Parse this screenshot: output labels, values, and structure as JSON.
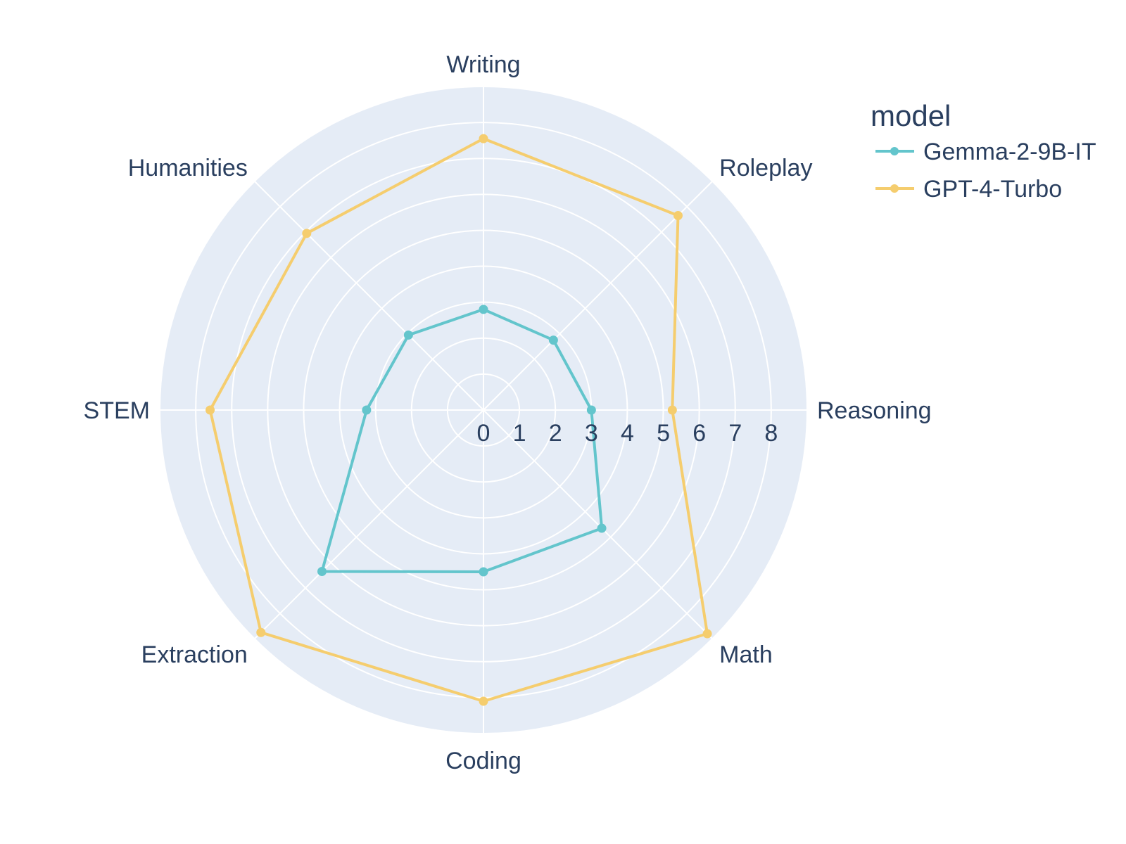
{
  "chart_data": {
    "type": "radar",
    "categories": [
      "Writing",
      "Roleplay",
      "Reasoning",
      "Math",
      "Coding",
      "Extraction",
      "STEM",
      "Humanities"
    ],
    "radial_range": [
      0,
      9
    ],
    "radial_ticks": [
      "0",
      "1",
      "2",
      "3",
      "4",
      "5",
      "6",
      "7",
      "8"
    ],
    "legend_title": "model",
    "legend_position": "top-right",
    "grid": true,
    "series": [
      {
        "name": "Gemma-2-9B-IT",
        "color": "#63c5cc",
        "values": [
          2.8,
          2.75,
          3.0,
          4.65,
          4.5,
          6.35,
          3.25,
          2.95
        ]
      },
      {
        "name": "GPT-4-Turbo",
        "color": "#f5cd6e",
        "values": [
          7.55,
          7.65,
          5.25,
          8.8,
          8.1,
          8.75,
          7.6,
          6.95
        ]
      }
    ]
  }
}
